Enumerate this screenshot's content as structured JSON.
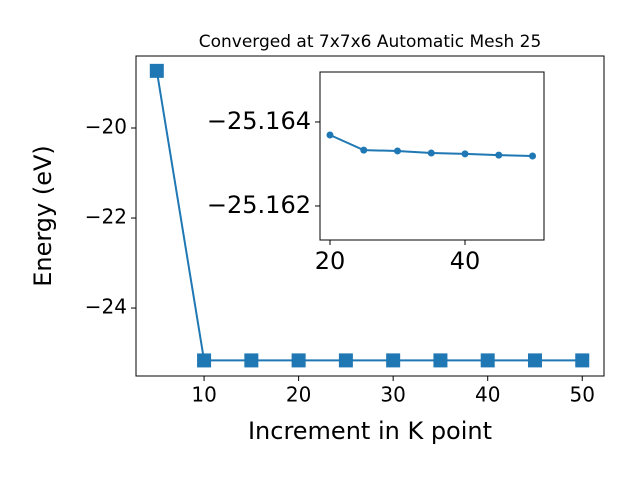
{
  "chart_data": [
    {
      "type": "line",
      "title": "Converged at 7x7x6 Automatic Mesh 25",
      "x_label": "Increment in K point",
      "y_label": "Energy (eV)",
      "x": [
        5,
        10,
        15,
        20,
        25,
        30,
        35,
        40,
        45,
        50
      ],
      "series": [
        {
          "color": "#1f77b4",
          "marker": "square",
          "values": [
            -18.73,
            -25.164,
            -25.1634,
            -25.1633,
            -25.1633,
            -25.1632,
            -25.1632,
            -25.1632,
            -25.1632,
            -25.1632
          ]
        }
      ],
      "xlim": [
        2.8,
        52.3
      ],
      "ylim": [
        -25.51,
        -18.4
      ],
      "xticks": [
        10,
        20,
        30,
        40,
        50
      ],
      "yticks": [
        {
          "value": -20,
          "label": "−20"
        },
        {
          "value": -22,
          "label": "−22"
        },
        {
          "value": -24,
          "label": "−24"
        }
      ]
    },
    {
      "type": "line",
      "x": [
        20,
        25,
        30,
        35,
        40,
        45,
        50
      ],
      "series": [
        {
          "color": "#1f77b4",
          "marker": "circle",
          "values": [
            -25.16369,
            -25.16333,
            -25.16331,
            -25.16326,
            -25.16324,
            -25.16321,
            -25.16319
          ]
        }
      ],
      "xlim": [
        18.52,
        51.7
      ],
      "ylim": [
        -25.16119,
        -25.16519
      ],
      "xticks": [
        20,
        40
      ],
      "yticks": [
        {
          "value": -25.164,
          "label": "−25.164"
        },
        {
          "value": -25.162,
          "label": "−25.162"
        }
      ]
    }
  ]
}
